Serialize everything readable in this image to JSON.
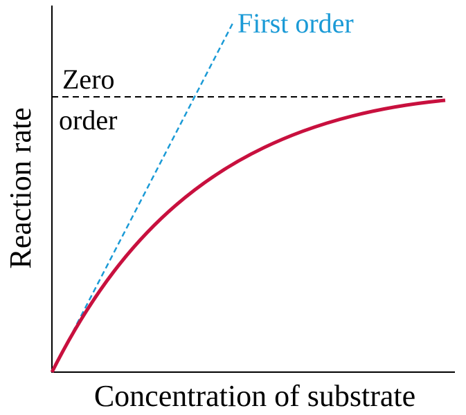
{
  "axes": {
    "x_label": "Concentration of substrate",
    "y_label": "Reaction rate"
  },
  "annotations": {
    "first_order": "First order",
    "zero_order": [
      "Zero",
      "order"
    ]
  }
}
